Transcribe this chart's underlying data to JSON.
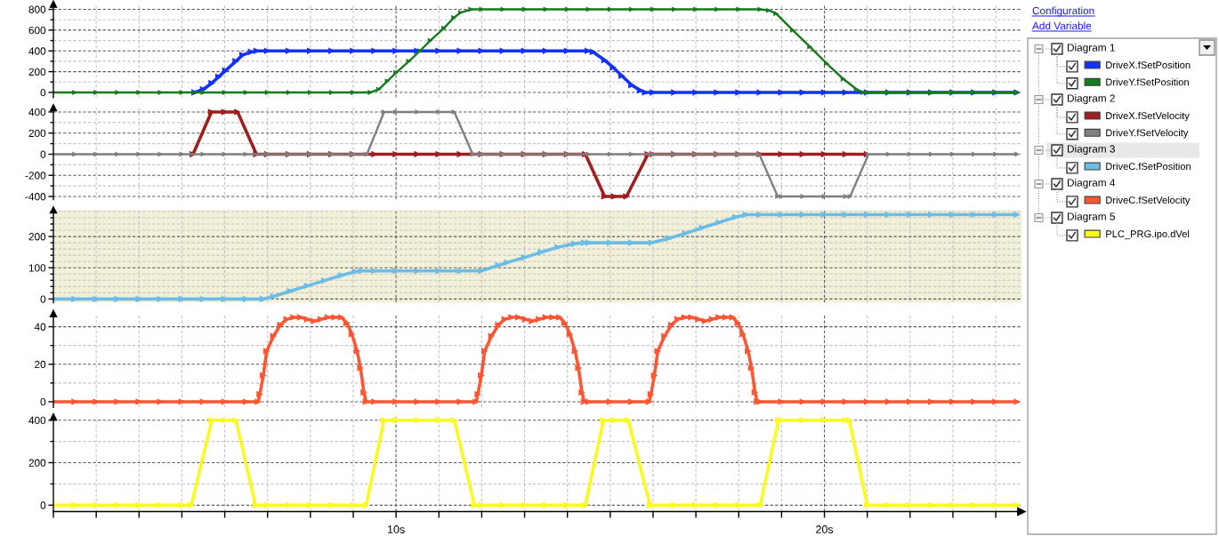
{
  "chart_data": [
    {
      "type": "line",
      "legend_title": "Diagram 1",
      "legend": "right",
      "annotations": [
        "Configuration",
        "Add Variable"
      ],
      "grid": true,
      "marker": "triangle",
      "line_style": "solid",
      "tick_labels": "y",
      "xlim": [
        2,
        24.6
      ],
      "xticks": [
        {
          "value": 2,
          "label": null
        },
        {
          "value": 3,
          "label": null
        },
        {
          "value": 4,
          "label": null
        },
        {
          "value": 5,
          "label": null
        },
        {
          "value": 6,
          "label": null
        },
        {
          "value": 7,
          "label": null
        },
        {
          "value": 8,
          "label": null
        },
        {
          "value": 9,
          "label": null
        },
        {
          "value": 10,
          "label": null
        },
        {
          "value": 11,
          "label": null
        },
        {
          "value": 12,
          "label": null
        },
        {
          "value": 13,
          "label": null
        },
        {
          "value": 14,
          "label": null
        },
        {
          "value": 15,
          "label": null
        },
        {
          "value": 16,
          "label": null
        },
        {
          "value": 17,
          "label": null
        },
        {
          "value": 18,
          "label": null
        },
        {
          "value": 19,
          "label": null
        },
        {
          "value": 20,
          "label": null
        },
        {
          "value": 21,
          "label": null
        },
        {
          "value": 22,
          "label": null
        },
        {
          "value": 23,
          "label": null
        },
        {
          "value": 24,
          "label": null
        }
      ],
      "ylim": [
        -50,
        850
      ],
      "yticks": [
        0,
        {
          "value": 100,
          "label": null
        },
        200,
        {
          "value": 300,
          "label": null
        },
        400,
        {
          "value": 500,
          "label": null
        },
        600,
        {
          "value": 700,
          "label": null
        },
        800
      ],
      "series": [
        {
          "name": "DriveX.fSetPosition",
          "color": "#1432ff",
          "x": [
            5.3,
            5.5,
            5.7,
            5.86,
            6.02,
            6.26,
            6.42,
            6.62,
            6.75,
            7,
            7.5,
            8,
            8.5,
            9,
            9.5,
            10,
            10.5,
            11,
            11.5,
            12,
            12.5,
            13,
            13.5,
            14,
            14.48,
            14.6,
            14.87,
            15.07,
            15.27,
            15.5,
            15.7,
            15.82,
            16,
            16.5,
            17,
            17.5,
            18,
            18.5,
            19,
            19.5,
            20,
            20.5,
            21,
            21.5,
            22,
            22.5,
            23,
            23.5,
            24,
            24.5
          ],
          "values": [
            0,
            30,
            90,
            150,
            210,
            300,
            360,
            390,
            400,
            400,
            400,
            400,
            400,
            400,
            400,
            400,
            400,
            400,
            400,
            400,
            400,
            400,
            400,
            400,
            400,
            390,
            310,
            240,
            160,
            70,
            20,
            0,
            0,
            0,
            0,
            0,
            0,
            0,
            0,
            0,
            0,
            0,
            0,
            0,
            0,
            0,
            0,
            0,
            0,
            0
          ]
        },
        {
          "name": "DriveY.fSetPosition",
          "color": "#147a1e",
          "x": [
            2,
            2.5,
            3,
            3.5,
            4,
            4.5,
            5,
            5.5,
            6,
            6.5,
            7,
            7.5,
            8,
            8.5,
            9,
            9.4,
            9.6,
            9.8,
            10,
            10.3,
            10.56,
            10.8,
            11.12,
            11.35,
            11.51,
            11.75,
            12,
            12.5,
            13,
            13.5,
            14,
            14.5,
            15,
            15.5,
            16,
            16.5,
            17,
            17.5,
            18,
            18.5,
            18.7,
            18.87,
            19.26,
            19.66,
            20.05,
            20.44,
            20.75,
            20.9,
            21,
            21.5,
            22,
            22.5,
            23,
            23.5,
            24,
            24.5
          ],
          "values": [
            0,
            0,
            0,
            0,
            0,
            0,
            0,
            0,
            0,
            0,
            0,
            0,
            0,
            0,
            0,
            0,
            30,
            110,
            190,
            300,
            400,
            500,
            620,
            720,
            770,
            800,
            800,
            800,
            800,
            800,
            800,
            800,
            800,
            800,
            800,
            800,
            800,
            800,
            800,
            800,
            790,
            760,
            600,
            440,
            280,
            130,
            30,
            0,
            0,
            0,
            0,
            0,
            0,
            0,
            0,
            0
          ]
        }
      ]
    },
    {
      "type": "line",
      "legend_title": "Diagram 2",
      "legend": "right",
      "grid": true,
      "marker": "triangle",
      "line_style": "solid",
      "tick_labels": "y",
      "xlim": [
        2,
        24.6
      ],
      "xticks": [
        {
          "value": 2,
          "label": null
        },
        {
          "value": 3,
          "label": null
        },
        {
          "value": 4,
          "label": null
        },
        {
          "value": 5,
          "label": null
        },
        {
          "value": 6,
          "label": null
        },
        {
          "value": 7,
          "label": null
        },
        {
          "value": 8,
          "label": null
        },
        {
          "value": 9,
          "label": null
        },
        {
          "value": 10,
          "label": null
        },
        {
          "value": 11,
          "label": null
        },
        {
          "value": 12,
          "label": null
        },
        {
          "value": 13,
          "label": null
        },
        {
          "value": 14,
          "label": null
        },
        {
          "value": 15,
          "label": null
        },
        {
          "value": 16,
          "label": null
        },
        {
          "value": 17,
          "label": null
        },
        {
          "value": 18,
          "label": null
        },
        {
          "value": 19,
          "label": null
        },
        {
          "value": 20,
          "label": null
        },
        {
          "value": 21,
          "label": null
        },
        {
          "value": 22,
          "label": null
        },
        {
          "value": 23,
          "label": null
        },
        {
          "value": 24,
          "label": null
        }
      ],
      "ylim": [
        -430,
        440
      ],
      "yticks": [
        -400,
        {
          "value": -300,
          "label": null
        },
        -200,
        {
          "value": -100,
          "label": null
        },
        0,
        {
          "value": 100,
          "label": null
        },
        200,
        {
          "value": 300,
          "label": null
        },
        400
      ],
      "series": [
        {
          "name": "DriveX.fSetVelocity",
          "color": "#a01e1e",
          "x": [
            5.26,
            5.69,
            6,
            6.3,
            6.74,
            7,
            7.5,
            8,
            8.5,
            9,
            9.5,
            10,
            10.5,
            11,
            11.5,
            12,
            12.5,
            13,
            13.5,
            14,
            14.42,
            14.87,
            15.1,
            15.38,
            15.88,
            16,
            16.5,
            17,
            17.5,
            18,
            18.5,
            19,
            19.5,
            20,
            20.5,
            21
          ],
          "values": [
            0,
            400,
            400,
            400,
            0,
            0,
            0,
            0,
            0,
            0,
            0,
            0,
            0,
            0,
            0,
            0,
            0,
            0,
            0,
            0,
            0,
            -400,
            -400,
            -400,
            0,
            0,
            0,
            0,
            0,
            0,
            0,
            0,
            0,
            0,
            0,
            0
          ]
        },
        {
          "name": "DriveY.fSetVelocity",
          "color": "#7f7f7f",
          "x": [
            2,
            2.5,
            3,
            3.5,
            4,
            4.5,
            5,
            5.5,
            6,
            6.5,
            7,
            7.5,
            8,
            8.5,
            9,
            9.32,
            9.72,
            10,
            10.5,
            11,
            11.36,
            11.79,
            12,
            12.5,
            13,
            13.5,
            14,
            14.5,
            15,
            15.5,
            16,
            16.5,
            17,
            17.5,
            18,
            18.48,
            18.91,
            19,
            19.5,
            20,
            20.5,
            20.6,
            21.03,
            21.5,
            22,
            22.5,
            23,
            23.5,
            24,
            24.5
          ],
          "values": [
            0,
            0,
            0,
            0,
            0,
            0,
            0,
            0,
            0,
            0,
            0,
            0,
            0,
            0,
            0,
            0,
            400,
            400,
            400,
            400,
            400,
            0,
            0,
            0,
            0,
            0,
            0,
            0,
            0,
            0,
            0,
            0,
            0,
            0,
            0,
            0,
            -400,
            -400,
            -400,
            -400,
            -400,
            -400,
            0,
            0,
            0,
            0,
            0,
            0,
            0,
            0
          ]
        }
      ]
    },
    {
      "type": "line",
      "legend_title": "Diagram 3",
      "legend": "right",
      "grid": true,
      "marker": "triangle",
      "line_style": "solid",
      "tick_labels": "y",
      "xlim": [
        2,
        24.6
      ],
      "xticks": [
        {
          "value": 2,
          "label": null
        },
        {
          "value": 3,
          "label": null
        },
        {
          "value": 4,
          "label": null
        },
        {
          "value": 5,
          "label": null
        },
        {
          "value": 6,
          "label": null
        },
        {
          "value": 7,
          "label": null
        },
        {
          "value": 8,
          "label": null
        },
        {
          "value": 9,
          "label": null
        },
        {
          "value": 10,
          "label": null
        },
        {
          "value": 11,
          "label": null
        },
        {
          "value": 12,
          "label": null
        },
        {
          "value": 13,
          "label": null
        },
        {
          "value": 14,
          "label": null
        },
        {
          "value": 15,
          "label": null
        },
        {
          "value": 16,
          "label": null
        },
        {
          "value": 17,
          "label": null
        },
        {
          "value": 18,
          "label": null
        },
        {
          "value": 19,
          "label": null
        },
        {
          "value": 20,
          "label": null
        },
        {
          "value": 21,
          "label": null
        },
        {
          "value": 22,
          "label": null
        },
        {
          "value": 23,
          "label": null
        },
        {
          "value": 24,
          "label": null
        }
      ],
      "ylim": [
        -12,
        285
      ],
      "yticks": [
        0,
        {
          "value": 20,
          "label": null
        },
        {
          "value": 40,
          "label": null
        },
        {
          "value": 60,
          "label": null
        },
        {
          "value": 80,
          "label": null
        },
        100,
        {
          "value": 120,
          "label": null
        },
        {
          "value": 140,
          "label": null
        },
        {
          "value": 160,
          "label": null
        },
        {
          "value": 180,
          "label": null
        },
        200,
        {
          "value": 220,
          "label": null
        },
        {
          "value": 240,
          "label": null
        },
        {
          "value": 260,
          "label": null
        },
        {
          "value": 280,
          "label": null
        }
      ],
      "series": [
        {
          "name": "DriveC.fSetPosition",
          "color": "#6cbde6",
          "x": [
            2,
            2.5,
            3,
            3.5,
            4,
            4.5,
            5,
            5.5,
            6,
            6.5,
            6.9,
            7.14,
            7.53,
            7.93,
            8.33,
            8.73,
            9.05,
            9.2,
            9.5,
            10,
            10.5,
            11,
            11.5,
            11.99,
            12.39,
            12.6,
            13,
            13.39,
            13.78,
            14.17,
            14.4,
            14.5,
            15,
            15.5,
            15.97,
            16.36,
            16.76,
            17.15,
            17.54,
            17.93,
            18.17,
            18.5,
            19,
            19.5,
            20,
            20.5,
            21,
            21.5,
            22,
            22.5,
            23,
            23.5,
            24,
            24.5
          ],
          "values": [
            0,
            0,
            0,
            0,
            0,
            0,
            0,
            0,
            0,
            0,
            0,
            8,
            25,
            42,
            59,
            76,
            88,
            90,
            90,
            90,
            90,
            90,
            90,
            90,
            108,
            117,
            133,
            150,
            166,
            177,
            180,
            180,
            180,
            180,
            180,
            194,
            210,
            228,
            245,
            262,
            270,
            270,
            270,
            270,
            270,
            270,
            270,
            270,
            270,
            270,
            270,
            270,
            270,
            270
          ]
        }
      ]
    },
    {
      "type": "line",
      "legend_title": "Diagram 4",
      "legend": "right",
      "grid": true,
      "marker": "triangle",
      "line_style": "solid",
      "tick_labels": "y",
      "xlim": [
        2,
        24.6
      ],
      "xticks": [
        {
          "value": 2,
          "label": null
        },
        {
          "value": 3,
          "label": null
        },
        {
          "value": 4,
          "label": null
        },
        {
          "value": 5,
          "label": null
        },
        {
          "value": 6,
          "label": null
        },
        {
          "value": 7,
          "label": null
        },
        {
          "value": 8,
          "label": null
        },
        {
          "value": 9,
          "label": null
        },
        {
          "value": 10,
          "label": null
        },
        {
          "value": 11,
          "label": null
        },
        {
          "value": 12,
          "label": null
        },
        {
          "value": 13,
          "label": null
        },
        {
          "value": 14,
          "label": null
        },
        {
          "value": 15,
          "label": null
        },
        {
          "value": 16,
          "label": null
        },
        {
          "value": 17,
          "label": null
        },
        {
          "value": 18,
          "label": null
        },
        {
          "value": 19,
          "label": null
        },
        {
          "value": 20,
          "label": null
        },
        {
          "value": 21,
          "label": null
        },
        {
          "value": 22,
          "label": null
        },
        {
          "value": 23,
          "label": null
        },
        {
          "value": 24,
          "label": null
        }
      ],
      "ylim": [
        -3,
        47
      ],
      "yticks": [
        0,
        {
          "value": 10,
          "label": null
        },
        20,
        {
          "value": 30,
          "label": null
        },
        40
      ],
      "series": [
        {
          "name": "DriveC.fSetVelocity",
          "color": "#ff5533",
          "x": [
            2,
            2.5,
            3,
            3.5,
            4,
            4.5,
            5,
            5.5,
            6,
            6.5,
            6.78,
            6.82,
            6.9,
            6.98,
            7.14,
            7.3,
            7.45,
            7.61,
            7.77,
            7.93,
            8.09,
            8.25,
            8.41,
            8.57,
            8.73,
            8.85,
            8.97,
            9.09,
            9.17,
            9.25,
            9.3,
            9.5,
            10,
            10.5,
            11,
            11.5,
            11.87,
            11.91,
            11.99,
            12.07,
            12.23,
            12.39,
            12.54,
            12.7,
            12.86,
            13.02,
            13.18,
            13.34,
            13.5,
            13.66,
            13.82,
            13.94,
            14.06,
            14.18,
            14.26,
            14.34,
            14.39,
            14.5,
            15,
            15.5,
            15.91,
            15.95,
            16.03,
            16.11,
            16.27,
            16.43,
            16.58,
            16.74,
            16.9,
            17.06,
            17.22,
            17.38,
            17.54,
            17.7,
            17.86,
            17.98,
            18.1,
            18.22,
            18.3,
            18.38,
            18.43,
            18.5,
            19,
            19.5,
            20,
            20.5,
            21,
            21.5,
            22,
            22.5,
            23,
            23.5,
            24,
            24.5
          ],
          "values": [
            0,
            0,
            0,
            0,
            0,
            0,
            0,
            0,
            0,
            0,
            0,
            4,
            14,
            27,
            35,
            41,
            44,
            45,
            45,
            44,
            43,
            44,
            45,
            45,
            45,
            42,
            36,
            27,
            18,
            5,
            0,
            0,
            0,
            0,
            0,
            0,
            0,
            4,
            14,
            27,
            35,
            41,
            44,
            45,
            45,
            44,
            43,
            44,
            45,
            45,
            45,
            42,
            36,
            27,
            18,
            5,
            0,
            0,
            0,
            0,
            0,
            4,
            14,
            27,
            35,
            41,
            44,
            45,
            45,
            44,
            43,
            44,
            45,
            45,
            45,
            42,
            36,
            27,
            18,
            5,
            0,
            0,
            0,
            0,
            0,
            0,
            0,
            0,
            0,
            0,
            0,
            0,
            0,
            0
          ]
        }
      ]
    },
    {
      "type": "line",
      "legend_title": "Diagram 5",
      "legend": "right",
      "grid": true,
      "marker": "triangle",
      "line_style": "solid",
      "xlim": [
        2,
        24.6
      ],
      "xticks": [
        {
          "value": 2,
          "label": null
        },
        {
          "value": 3,
          "label": null
        },
        {
          "value": 4,
          "label": null
        },
        {
          "value": 5,
          "label": null
        },
        {
          "value": 6,
          "label": null
        },
        {
          "value": 7,
          "label": null
        },
        {
          "value": 8,
          "label": null
        },
        {
          "value": 9,
          "label": null
        },
        {
          "value": 10,
          "label": "10s"
        },
        {
          "value": 11,
          "label": null
        },
        {
          "value": 12,
          "label": null
        },
        {
          "value": 13,
          "label": null
        },
        {
          "value": 14,
          "label": null
        },
        {
          "value": 15,
          "label": null
        },
        {
          "value": 16,
          "label": null
        },
        {
          "value": 17,
          "label": null
        },
        {
          "value": 18,
          "label": null
        },
        {
          "value": 19,
          "label": null
        },
        {
          "value": 20,
          "label": "20s"
        },
        {
          "value": 21,
          "label": null
        },
        {
          "value": 22,
          "label": null
        },
        {
          "value": 23,
          "label": null
        },
        {
          "value": 24,
          "label": null
        }
      ],
      "ylim": [
        -30,
        415
      ],
      "yticks": [
        0,
        {
          "value": 100,
          "label": null
        },
        200,
        {
          "value": 300,
          "label": null
        },
        400
      ],
      "series": [
        {
          "name": "PLC_PRG.ipo.dVel",
          "color": "#fafa1e",
          "x": [
            2,
            2.5,
            3,
            3.5,
            4,
            4.5,
            5,
            5.22,
            5.7,
            6,
            6.26,
            6.72,
            7,
            7.5,
            8,
            8.5,
            9,
            9.3,
            9.72,
            10,
            10.5,
            11,
            11.36,
            11.83,
            12,
            12.5,
            13,
            13.5,
            14,
            14.42,
            14.84,
            15.1,
            15.42,
            15.93,
            16,
            16.5,
            17,
            17.5,
            18,
            18.5,
            18.93,
            19,
            19.5,
            20,
            20.5,
            20.58,
            21,
            21.5,
            22,
            22.5,
            23,
            23.5,
            24,
            24.5
          ],
          "values": [
            0,
            0,
            0,
            0,
            0,
            0,
            0,
            0,
            400,
            400,
            400,
            0,
            0,
            0,
            0,
            0,
            0,
            0,
            400,
            400,
            400,
            400,
            400,
            0,
            0,
            0,
            0,
            0,
            0,
            0,
            400,
            400,
            400,
            0,
            0,
            0,
            0,
            0,
            0,
            0,
            400,
            400,
            400,
            400,
            400,
            400,
            0,
            0,
            0,
            0,
            0,
            0,
            0,
            0
          ]
        }
      ]
    }
  ]
}
